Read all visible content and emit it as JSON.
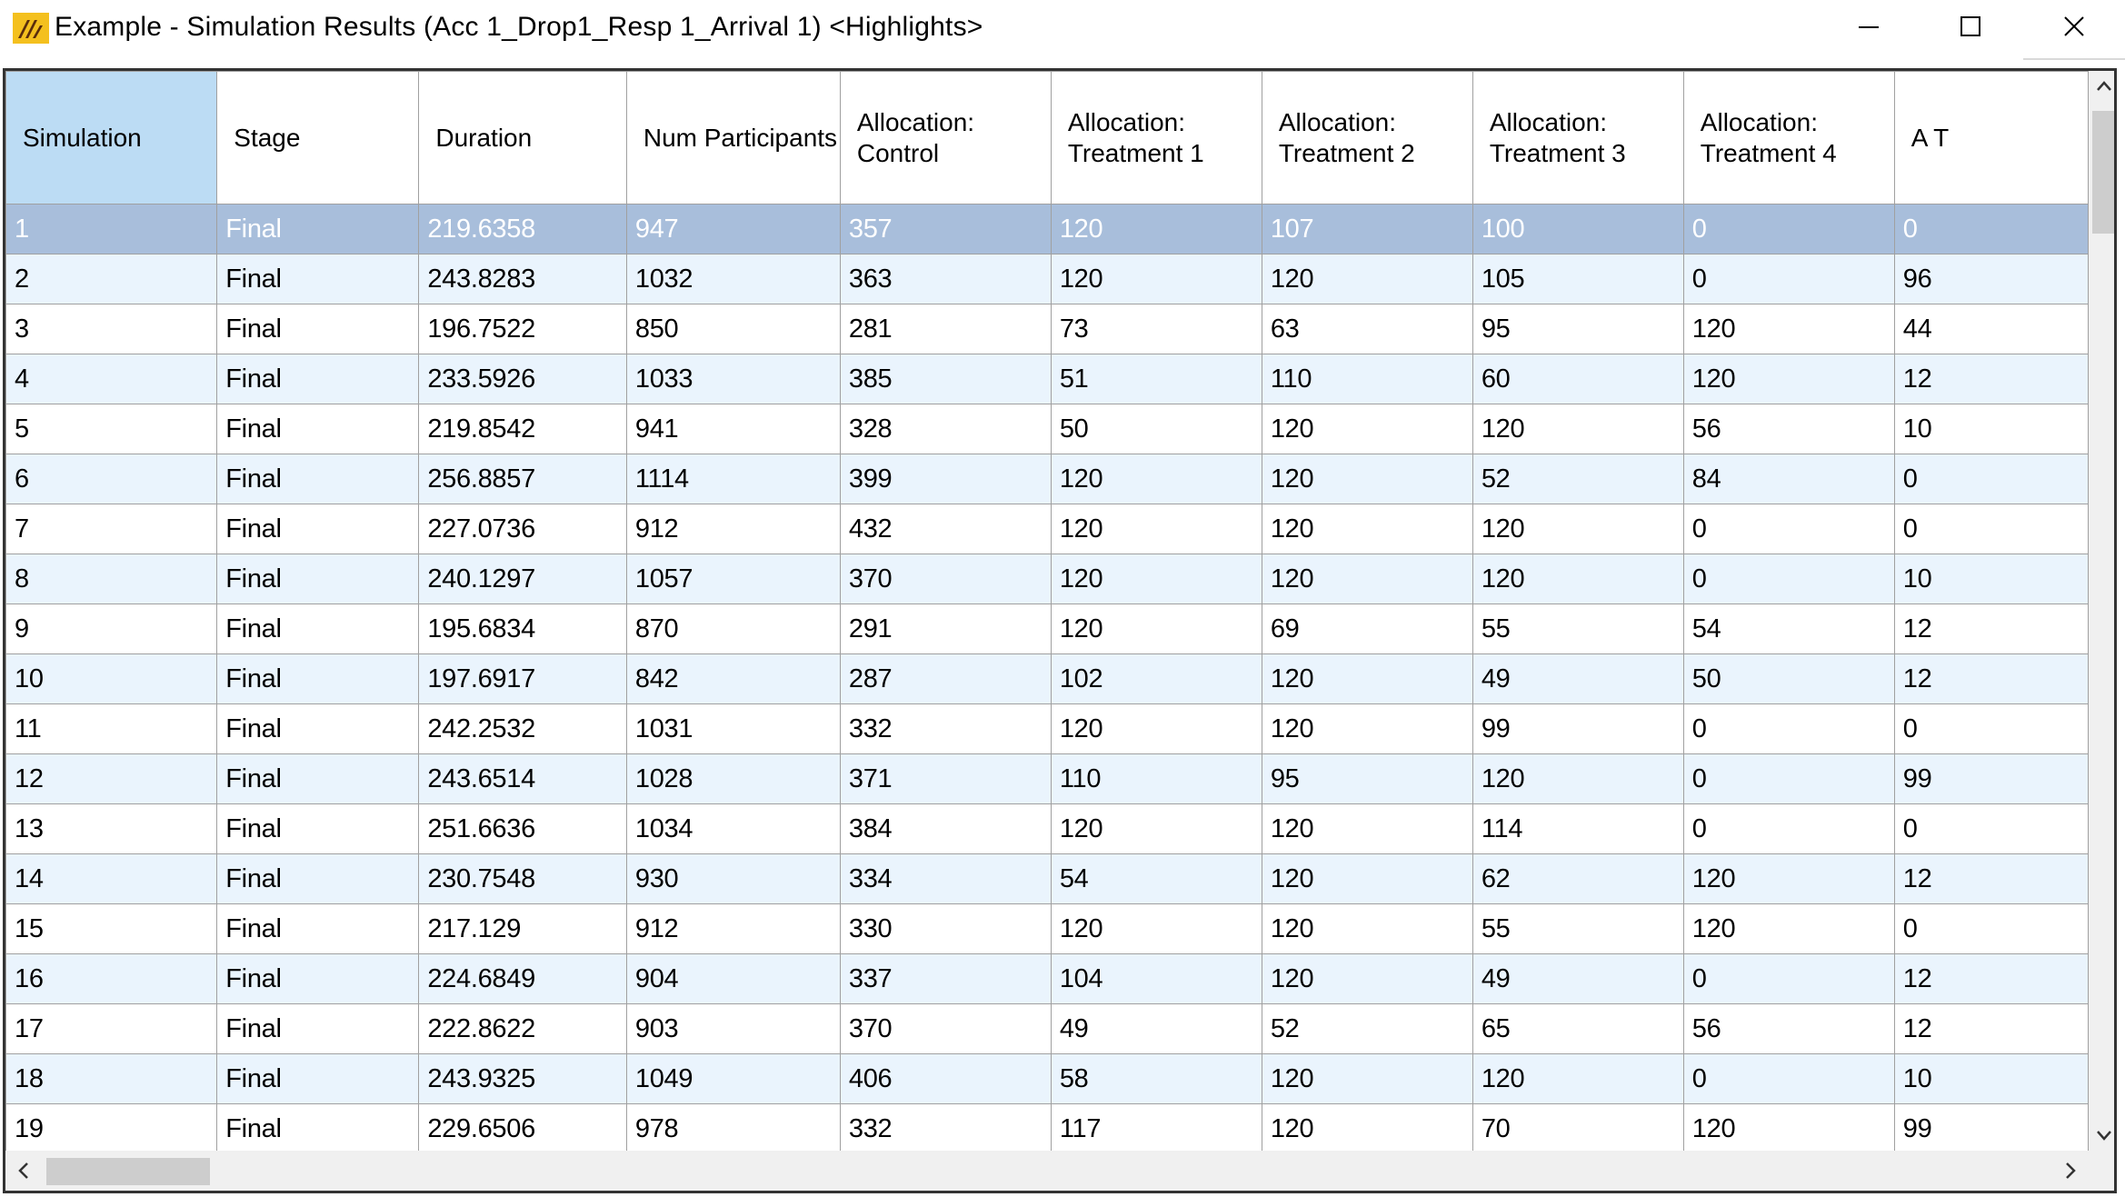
{
  "window": {
    "title": "Example - Simulation Results (Acc 1_Drop1_Resp 1_Arrival 1) <Highlights>",
    "icon": "app-logo-icon",
    "controls": [
      "minimize-icon",
      "maximize-icon",
      "close-icon"
    ]
  },
  "grid": {
    "columns": [
      "Simulation",
      "Stage",
      "Duration",
      "Num Participants",
      "Allocation: Control",
      "Allocation: Treatment 1",
      "Allocation: Treatment 2",
      "Allocation: Treatment 3",
      "Allocation: Treatment 4",
      "A T"
    ],
    "selected_header": "Simulation",
    "selected_row": 0,
    "rows": [
      [
        "1",
        "Final",
        "219.6358",
        "947",
        "357",
        "120",
        "107",
        "100",
        "0",
        "0"
      ],
      [
        "2",
        "Final",
        "243.8283",
        "1032",
        "363",
        "120",
        "120",
        "105",
        "0",
        "96"
      ],
      [
        "3",
        "Final",
        "196.7522",
        "850",
        "281",
        "73",
        "63",
        "95",
        "120",
        "44"
      ],
      [
        "4",
        "Final",
        "233.5926",
        "1033",
        "385",
        "51",
        "110",
        "60",
        "120",
        "12"
      ],
      [
        "5",
        "Final",
        "219.8542",
        "941",
        "328",
        "50",
        "120",
        "120",
        "56",
        "10"
      ],
      [
        "6",
        "Final",
        "256.8857",
        "1114",
        "399",
        "120",
        "120",
        "52",
        "84",
        "0"
      ],
      [
        "7",
        "Final",
        "227.0736",
        "912",
        "432",
        "120",
        "120",
        "120",
        "0",
        "0"
      ],
      [
        "8",
        "Final",
        "240.1297",
        "1057",
        "370",
        "120",
        "120",
        "120",
        "0",
        "10"
      ],
      [
        "9",
        "Final",
        "195.6834",
        "870",
        "291",
        "120",
        "69",
        "55",
        "54",
        "12"
      ],
      [
        "10",
        "Final",
        "197.6917",
        "842",
        "287",
        "102",
        "120",
        "49",
        "50",
        "12"
      ],
      [
        "11",
        "Final",
        "242.2532",
        "1031",
        "332",
        "120",
        "120",
        "99",
        "0",
        "0"
      ],
      [
        "12",
        "Final",
        "243.6514",
        "1028",
        "371",
        "110",
        "95",
        "120",
        "0",
        "99"
      ],
      [
        "13",
        "Final",
        "251.6636",
        "1034",
        "384",
        "120",
        "120",
        "114",
        "0",
        "0"
      ],
      [
        "14",
        "Final",
        "230.7548",
        "930",
        "334",
        "54",
        "120",
        "62",
        "120",
        "12"
      ],
      [
        "15",
        "Final",
        "217.129",
        "912",
        "330",
        "120",
        "120",
        "55",
        "120",
        "0"
      ],
      [
        "16",
        "Final",
        "224.6849",
        "904",
        "337",
        "104",
        "120",
        "49",
        "0",
        "12"
      ],
      [
        "17",
        "Final",
        "222.8622",
        "903",
        "370",
        "49",
        "52",
        "65",
        "56",
        "12"
      ],
      [
        "18",
        "Final",
        "243.9325",
        "1049",
        "406",
        "58",
        "120",
        "120",
        "0",
        "10"
      ],
      [
        "19",
        "Final",
        "229.6506",
        "978",
        "332",
        "117",
        "120",
        "70",
        "120",
        "99"
      ]
    ]
  },
  "colors": {
    "selected_row_bg": "#a8bedb",
    "selected_header_bg": "#bcdcf4",
    "alt_row_bg": "#eaf4fd",
    "grid_line": "#a0a0a0"
  }
}
